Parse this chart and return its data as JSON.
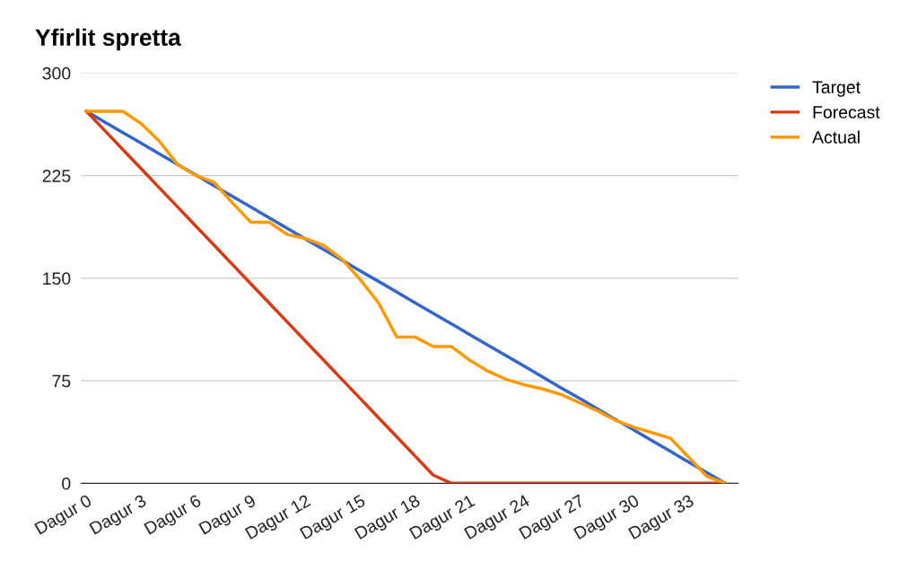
{
  "chart_data": {
    "type": "line",
    "title": "Yfirlit spretta",
    "categories": [
      "Dagur 0",
      null,
      null,
      "Dagur 3",
      null,
      null,
      "Dagur 6",
      null,
      null,
      "Dagur 9",
      null,
      null,
      "Dagur 12",
      null,
      null,
      "Dagur 15",
      null,
      null,
      "Dagur 18",
      null,
      null,
      "Dagur 21",
      null,
      null,
      "Dagur 24",
      null,
      null,
      "Dagur 27",
      null,
      null,
      "Dagur 30",
      null,
      null,
      "Dagur 33",
      null,
      null
    ],
    "series": [
      {
        "name": "Target",
        "color": "#3366cc",
        "values": [
          272,
          264.2,
          256.5,
          248.7,
          240.9,
          233.1,
          225.4,
          217.6,
          209.8,
          202.1,
          194.3,
          186.5,
          178.7,
          171,
          163.2,
          155.4,
          147.7,
          139.9,
          132.1,
          124.3,
          116.6,
          108.8,
          101,
          93.3,
          85.5,
          77.7,
          69.9,
          62.2,
          54.4,
          46.6,
          38.9,
          31.1,
          23.3,
          15.5,
          7.8,
          0
        ]
      },
      {
        "name": "Forecast",
        "color": "#dc3912",
        "values": [
          272,
          258,
          244,
          230,
          216,
          202,
          188,
          174,
          160,
          146,
          132,
          118,
          104,
          90,
          76,
          62,
          48,
          34,
          20,
          6,
          0,
          0,
          0,
          0,
          0,
          0,
          0,
          0,
          0,
          0,
          0,
          0,
          0,
          0,
          0,
          0
        ]
      },
      {
        "name": "Actual",
        "color": "#ff9900",
        "values": [
          272,
          272,
          272,
          263,
          250,
          233,
          225,
          220,
          205,
          191,
          191,
          182,
          179,
          174,
          164,
          149,
          132,
          107,
          107,
          100,
          100,
          90,
          82,
          76,
          72,
          69,
          65,
          59,
          53,
          46,
          41,
          37,
          33,
          19,
          5,
          0
        ]
      }
    ],
    "ylim": [
      0,
      300
    ],
    "yticks": [
      0,
      75,
      150,
      225,
      300
    ],
    "grid": "y",
    "legend": "top right",
    "marker": "none",
    "line_style": "solid"
  }
}
